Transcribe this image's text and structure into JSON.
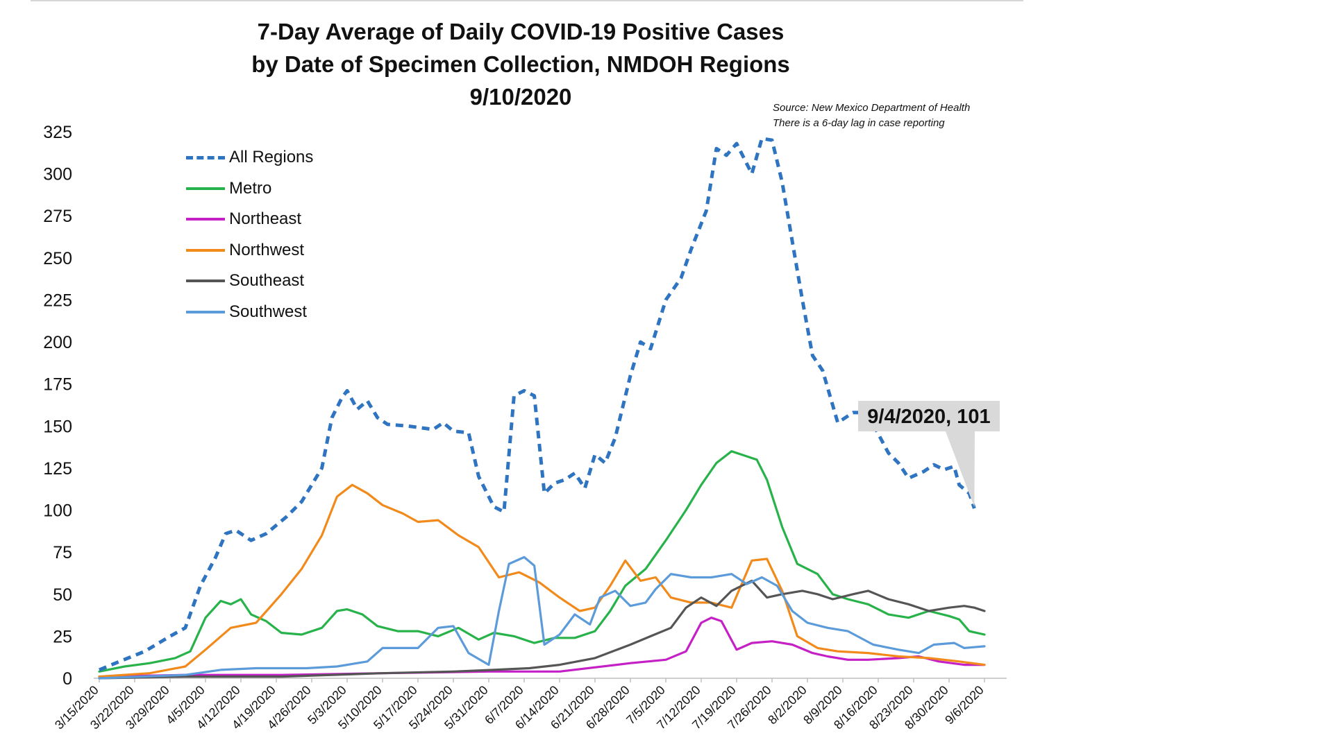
{
  "title": {
    "line1": "7-Day Average of Daily COVID-19 Positive Cases",
    "line2": "by Date of Specimen Collection, NMDOH Regions",
    "line3": "9/10/2020"
  },
  "source": {
    "line1": "Source: New Mexico Department of Health",
    "line2": "There is a 6-day lag in case reporting"
  },
  "callout": {
    "label": "9/4/2020, 101",
    "x": "9/4/2020",
    "y": 101
  },
  "chart_data": {
    "type": "line",
    "title": "7-Day Average of Daily COVID-19 Positive Cases by Date of Specimen Collection, NMDOH Regions 9/10/2020",
    "xlabel": "",
    "ylabel": "",
    "ylim": [
      0,
      325
    ],
    "yticks": [
      0,
      25,
      50,
      75,
      100,
      125,
      150,
      175,
      200,
      225,
      250,
      275,
      300,
      325
    ],
    "x_start": "3/15/2020",
    "x_end": "9/6/2020",
    "x_tick_labels": [
      "3/15/2020",
      "3/22/2020",
      "3/29/2020",
      "4/5/2020",
      "4/12/2020",
      "4/19/2020",
      "4/26/2020",
      "5/3/2020",
      "5/10/2020",
      "5/17/2020",
      "5/24/2020",
      "5/31/2020",
      "6/7/2020",
      "6/14/2020",
      "6/21/2020",
      "6/28/2020",
      "7/5/2020",
      "7/12/2020",
      "7/19/2020",
      "7/26/2020",
      "8/2/2020",
      "8/9/2020",
      "8/16/2020",
      "8/23/2020",
      "8/30/2020",
      "9/6/2020"
    ],
    "grid": false,
    "legend_position": "top-left",
    "series": [
      {
        "name": "All Regions",
        "color": "#2f74c0",
        "style": "dashed",
        "points": [
          [
            "3/15/2020",
            5
          ],
          [
            "3/19/2020",
            10
          ],
          [
            "3/24/2020",
            16
          ],
          [
            "3/29/2020",
            25
          ],
          [
            "4/1/2020",
            30
          ],
          [
            "4/4/2020",
            55
          ],
          [
            "4/7/2020",
            72
          ],
          [
            "4/9/2020",
            86
          ],
          [
            "4/11/2020",
            88
          ],
          [
            "4/14/2020",
            82
          ],
          [
            "4/17/2020",
            86
          ],
          [
            "4/21/2020",
            96
          ],
          [
            "4/24/2020",
            105
          ],
          [
            "4/28/2020",
            125
          ],
          [
            "4/30/2020",
            155
          ],
          [
            "5/2/2020",
            167
          ],
          [
            "5/3/2020",
            171
          ],
          [
            "5/5/2020",
            160
          ],
          [
            "5/7/2020",
            165
          ],
          [
            "5/9/2020",
            155
          ],
          [
            "5/11/2020",
            151
          ],
          [
            "5/15/2020",
            150
          ],
          [
            "5/20/2020",
            148
          ],
          [
            "5/22/2020",
            152
          ],
          [
            "5/24/2020",
            147
          ],
          [
            "5/27/2020",
            146
          ],
          [
            "5/29/2020",
            120
          ],
          [
            "6/1/2020",
            102
          ],
          [
            "6/3/2020",
            99
          ],
          [
            "6/5/2020",
            168
          ],
          [
            "6/7/2020",
            171
          ],
          [
            "6/9/2020",
            168
          ],
          [
            "6/11/2020",
            110
          ],
          [
            "6/13/2020",
            116
          ],
          [
            "6/15/2020",
            118
          ],
          [
            "6/17/2020",
            122
          ],
          [
            "6/19/2020",
            113
          ],
          [
            "6/21/2020",
            133
          ],
          [
            "6/23/2020",
            128
          ],
          [
            "6/25/2020",
            143
          ],
          [
            "6/28/2020",
            180
          ],
          [
            "6/30/2020",
            200
          ],
          [
            "7/2/2020",
            196
          ],
          [
            "7/5/2020",
            225
          ],
          [
            "7/8/2020",
            238
          ],
          [
            "7/10/2020",
            255
          ],
          [
            "7/13/2020",
            278
          ],
          [
            "7/15/2020",
            315
          ],
          [
            "7/17/2020",
            311
          ],
          [
            "7/19/2020",
            318
          ],
          [
            "7/22/2020",
            300
          ],
          [
            "7/24/2020",
            321
          ],
          [
            "7/26/2020",
            320
          ],
          [
            "7/28/2020",
            295
          ],
          [
            "7/30/2020",
            260
          ],
          [
            "8/1/2020",
            225
          ],
          [
            "8/3/2020",
            192
          ],
          [
            "8/5/2020",
            183
          ],
          [
            "8/8/2020",
            152
          ],
          [
            "8/11/2020",
            158
          ],
          [
            "8/13/2020",
            158
          ],
          [
            "8/15/2020",
            151
          ],
          [
            "8/18/2020",
            134
          ],
          [
            "8/20/2020",
            128
          ],
          [
            "8/22/2020",
            119
          ],
          [
            "8/25/2020",
            123
          ],
          [
            "8/27/2020",
            127
          ],
          [
            "8/29/2020",
            124
          ],
          [
            "8/31/2020",
            126
          ],
          [
            "9/1/2020",
            115
          ],
          [
            "9/3/2020",
            110
          ],
          [
            "9/4/2020",
            101
          ]
        ]
      },
      {
        "name": "Metro",
        "color": "#27b24a",
        "style": "solid",
        "points": [
          [
            "3/15/2020",
            4
          ],
          [
            "3/20/2020",
            7
          ],
          [
            "3/25/2020",
            9
          ],
          [
            "3/30/2020",
            12
          ],
          [
            "4/2/2020",
            16
          ],
          [
            "4/5/2020",
            36
          ],
          [
            "4/8/2020",
            46
          ],
          [
            "4/10/2020",
            44
          ],
          [
            "4/12/2020",
            47
          ],
          [
            "4/14/2020",
            38
          ],
          [
            "4/17/2020",
            34
          ],
          [
            "4/20/2020",
            27
          ],
          [
            "4/24/2020",
            26
          ],
          [
            "4/28/2020",
            30
          ],
          [
            "5/1/2020",
            40
          ],
          [
            "5/3/2020",
            41
          ],
          [
            "5/6/2020",
            38
          ],
          [
            "5/9/2020",
            31
          ],
          [
            "5/13/2020",
            28
          ],
          [
            "5/17/2020",
            28
          ],
          [
            "5/21/2020",
            25
          ],
          [
            "5/25/2020",
            30
          ],
          [
            "5/29/2020",
            23
          ],
          [
            "6/1/2020",
            27
          ],
          [
            "6/5/2020",
            25
          ],
          [
            "6/9/2020",
            21
          ],
          [
            "6/13/2020",
            24
          ],
          [
            "6/17/2020",
            24
          ],
          [
            "6/21/2020",
            28
          ],
          [
            "6/24/2020",
            40
          ],
          [
            "6/27/2020",
            55
          ],
          [
            "7/1/2020",
            65
          ],
          [
            "7/5/2020",
            82
          ],
          [
            "7/9/2020",
            100
          ],
          [
            "7/12/2020",
            115
          ],
          [
            "7/15/2020",
            128
          ],
          [
            "7/18/2020",
            135
          ],
          [
            "7/21/2020",
            132
          ],
          [
            "7/23/2020",
            130
          ],
          [
            "7/25/2020",
            118
          ],
          [
            "7/28/2020",
            90
          ],
          [
            "7/31/2020",
            68
          ],
          [
            "8/4/2020",
            62
          ],
          [
            "8/7/2020",
            50
          ],
          [
            "8/10/2020",
            47
          ],
          [
            "8/14/2020",
            44
          ],
          [
            "8/18/2020",
            38
          ],
          [
            "8/22/2020",
            36
          ],
          [
            "8/26/2020",
            40
          ],
          [
            "8/30/2020",
            37
          ],
          [
            "9/1/2020",
            35
          ],
          [
            "9/3/2020",
            28
          ],
          [
            "9/6/2020",
            26
          ]
        ]
      },
      {
        "name": "Northeast",
        "color": "#c520c5",
        "style": "solid",
        "points": [
          [
            "3/15/2020",
            1
          ],
          [
            "4/1/2020",
            2
          ],
          [
            "4/20/2020",
            2
          ],
          [
            "5/10/2020",
            3
          ],
          [
            "5/31/2020",
            4
          ],
          [
            "6/14/2020",
            4
          ],
          [
            "6/28/2020",
            9
          ],
          [
            "7/5/2020",
            11
          ],
          [
            "7/9/2020",
            16
          ],
          [
            "7/12/2020",
            33
          ],
          [
            "7/14/2020",
            36
          ],
          [
            "7/16/2020",
            34
          ],
          [
            "7/19/2020",
            17
          ],
          [
            "7/22/2020",
            21
          ],
          [
            "7/26/2020",
            22
          ],
          [
            "7/30/2020",
            20
          ],
          [
            "8/3/2020",
            15
          ],
          [
            "8/6/2020",
            13
          ],
          [
            "8/10/2020",
            11
          ],
          [
            "8/14/2020",
            11
          ],
          [
            "8/20/2020",
            12
          ],
          [
            "8/24/2020",
            13
          ],
          [
            "8/28/2020",
            10
          ],
          [
            "9/2/2020",
            8
          ],
          [
            "9/6/2020",
            8
          ]
        ]
      },
      {
        "name": "Northwest",
        "color": "#f28a1b",
        "style": "solid",
        "points": [
          [
            "3/15/2020",
            1
          ],
          [
            "3/25/2020",
            3
          ],
          [
            "4/1/2020",
            7
          ],
          [
            "4/5/2020",
            17
          ],
          [
            "4/10/2020",
            30
          ],
          [
            "4/15/2020",
            33
          ],
          [
            "4/20/2020",
            50
          ],
          [
            "4/24/2020",
            65
          ],
          [
            "4/28/2020",
            85
          ],
          [
            "5/1/2020",
            108
          ],
          [
            "5/4/2020",
            115
          ],
          [
            "5/7/2020",
            110
          ],
          [
            "5/10/2020",
            103
          ],
          [
            "5/14/2020",
            98
          ],
          [
            "5/17/2020",
            93
          ],
          [
            "5/21/2020",
            94
          ],
          [
            "5/25/2020",
            85
          ],
          [
            "5/29/2020",
            78
          ],
          [
            "6/2/2020",
            60
          ],
          [
            "6/6/2020",
            63
          ],
          [
            "6/10/2020",
            57
          ],
          [
            "6/14/2020",
            48
          ],
          [
            "6/18/2020",
            40
          ],
          [
            "6/21/2020",
            42
          ],
          [
            "6/24/2020",
            55
          ],
          [
            "6/27/2020",
            70
          ],
          [
            "6/30/2020",
            58
          ],
          [
            "7/3/2020",
            60
          ],
          [
            "7/6/2020",
            48
          ],
          [
            "7/10/2020",
            45
          ],
          [
            "7/14/2020",
            45
          ],
          [
            "7/18/2020",
            42
          ],
          [
            "7/22/2020",
            70
          ],
          [
            "7/25/2020",
            71
          ],
          [
            "7/28/2020",
            52
          ],
          [
            "7/31/2020",
            25
          ],
          [
            "8/4/2020",
            18
          ],
          [
            "8/8/2020",
            16
          ],
          [
            "8/14/2020",
            15
          ],
          [
            "8/20/2020",
            13
          ],
          [
            "8/26/2020",
            12
          ],
          [
            "9/1/2020",
            10
          ],
          [
            "9/6/2020",
            8
          ]
        ]
      },
      {
        "name": "Southeast",
        "color": "#555555",
        "style": "solid",
        "points": [
          [
            "3/15/2020",
            0
          ],
          [
            "4/1/2020",
            1
          ],
          [
            "4/20/2020",
            1
          ],
          [
            "5/10/2020",
            3
          ],
          [
            "5/24/2020",
            4
          ],
          [
            "6/1/2020",
            5
          ],
          [
            "6/8/2020",
            6
          ],
          [
            "6/14/2020",
            8
          ],
          [
            "6/21/2020",
            12
          ],
          [
            "6/28/2020",
            20
          ],
          [
            "7/2/2020",
            25
          ],
          [
            "7/6/2020",
            30
          ],
          [
            "7/9/2020",
            42
          ],
          [
            "7/12/2020",
            48
          ],
          [
            "7/15/2020",
            43
          ],
          [
            "7/18/2020",
            52
          ],
          [
            "7/22/2020",
            58
          ],
          [
            "7/25/2020",
            48
          ],
          [
            "7/28/2020",
            50
          ],
          [
            "8/1/2020",
            52
          ],
          [
            "8/4/2020",
            50
          ],
          [
            "8/7/2020",
            47
          ],
          [
            "8/11/2020",
            50
          ],
          [
            "8/14/2020",
            52
          ],
          [
            "8/18/2020",
            47
          ],
          [
            "8/22/2020",
            44
          ],
          [
            "8/26/2020",
            40
          ],
          [
            "8/30/2020",
            42
          ],
          [
            "9/2/2020",
            43
          ],
          [
            "9/4/2020",
            42
          ],
          [
            "9/6/2020",
            40
          ]
        ]
      },
      {
        "name": "Southwest",
        "color": "#5c9bd9",
        "style": "solid",
        "points": [
          [
            "3/15/2020",
            0
          ],
          [
            "4/1/2020",
            2
          ],
          [
            "4/8/2020",
            5
          ],
          [
            "4/15/2020",
            6
          ],
          [
            "4/25/2020",
            6
          ],
          [
            "5/1/2020",
            7
          ],
          [
            "5/7/2020",
            10
          ],
          [
            "5/10/2020",
            18
          ],
          [
            "5/17/2020",
            18
          ],
          [
            "5/21/2020",
            30
          ],
          [
            "5/24/2020",
            31
          ],
          [
            "5/27/2020",
            15
          ],
          [
            "5/31/2020",
            8
          ],
          [
            "6/2/2020",
            40
          ],
          [
            "6/4/2020",
            68
          ],
          [
            "6/7/2020",
            72
          ],
          [
            "6/9/2020",
            67
          ],
          [
            "6/11/2020",
            20
          ],
          [
            "6/14/2020",
            26
          ],
          [
            "6/17/2020",
            38
          ],
          [
            "6/20/2020",
            32
          ],
          [
            "6/22/2020",
            48
          ],
          [
            "6/25/2020",
            52
          ],
          [
            "6/28/2020",
            43
          ],
          [
            "7/1/2020",
            45
          ],
          [
            "7/3/2020",
            53
          ],
          [
            "7/6/2020",
            62
          ],
          [
            "7/10/2020",
            60
          ],
          [
            "7/14/2020",
            60
          ],
          [
            "7/18/2020",
            62
          ],
          [
            "7/21/2020",
            56
          ],
          [
            "7/24/2020",
            60
          ],
          [
            "7/27/2020",
            55
          ],
          [
            "7/30/2020",
            40
          ],
          [
            "8/2/2020",
            33
          ],
          [
            "8/6/2020",
            30
          ],
          [
            "8/10/2020",
            28
          ],
          [
            "8/15/2020",
            20
          ],
          [
            "8/20/2020",
            17
          ],
          [
            "8/24/2020",
            15
          ],
          [
            "8/27/2020",
            20
          ],
          [
            "8/31/2020",
            21
          ],
          [
            "9/2/2020",
            18
          ],
          [
            "9/6/2020",
            19
          ]
        ]
      }
    ]
  }
}
